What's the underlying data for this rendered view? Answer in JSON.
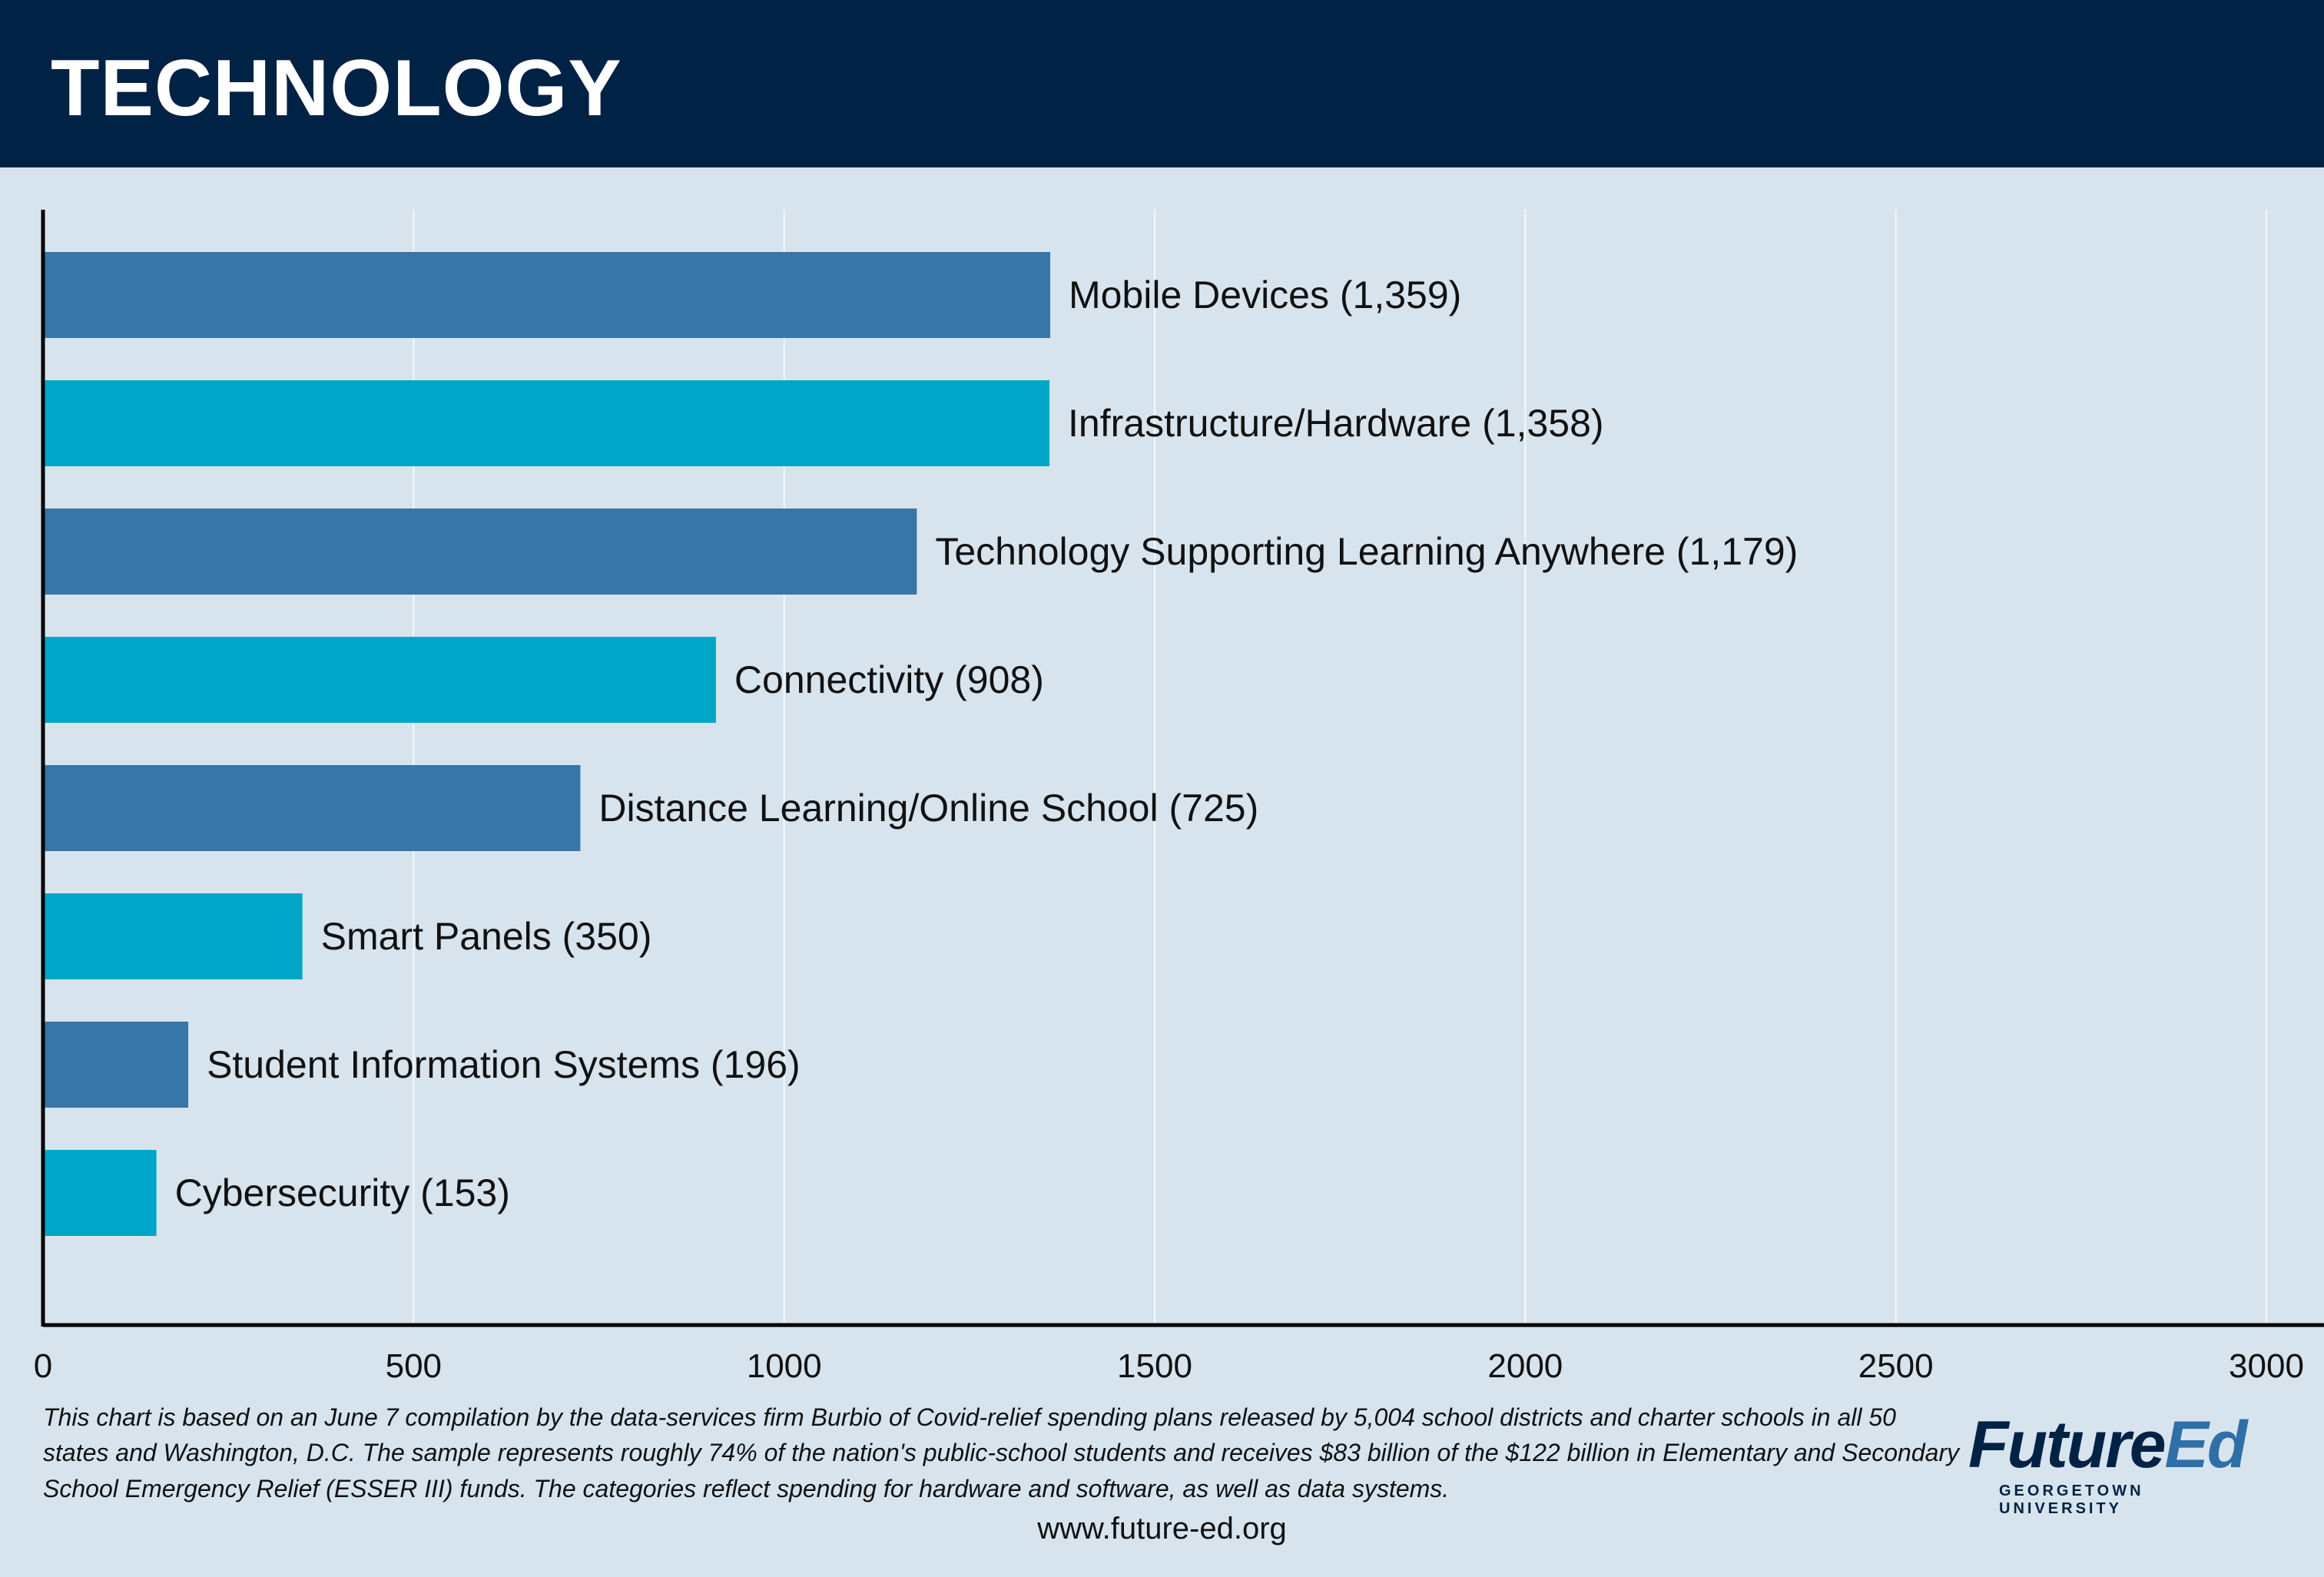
{
  "header": {
    "title": "TECHNOLOGY"
  },
  "chart_data": {
    "type": "bar",
    "orientation": "horizontal",
    "categories": [
      "Mobile Devices (1,359)",
      "Infrastructure/Hardware (1,358)",
      "Technology Supporting Learning Anywhere (1,179)",
      "Connectivity (908)",
      "Distance Learning/Online School (725)",
      "Smart Panels (350)",
      "Student Information Systems (196)",
      "Cybersecurity (153)"
    ],
    "values": [
      1359,
      1358,
      1179,
      908,
      725,
      350,
      196,
      153
    ],
    "colors": [
      "#3776a8",
      "#00a6c8",
      "#3776a8",
      "#00a6c8",
      "#3776a8",
      "#00a6c8",
      "#3776a8",
      "#00a6c8"
    ],
    "xlim": [
      0,
      3000
    ],
    "xticks": [
      "0",
      "500",
      "1000",
      "1500",
      "2000",
      "2500",
      "3000"
    ],
    "grid": true,
    "title": "",
    "xlabel": "",
    "ylabel": ""
  },
  "footnote": {
    "text": "This chart is based on an June 7 compilation by the data-services firm Burbio of Covid-relief spending plans released by 5,004 school districts and charter schools in all 50 states and Washington, D.C. The sample represents roughly 74% of the nation's public-school students and receives $83 billion of the $122 billion in Elementary and Secondary School Emergency Relief (ESSER III) funds. The categories reflect spending for hardware and software, as well as data systems."
  },
  "footer": {
    "url": "www.future-ed.org"
  },
  "logo": {
    "future": "Future",
    "ed": "Ed",
    "subtitle": "GEORGETOWN UNIVERSITY"
  },
  "colors": {
    "header_bg": "#002244",
    "page_bg": "#d7e4ee",
    "bar_dark": "#3776a8",
    "bar_light": "#00a6c8"
  }
}
